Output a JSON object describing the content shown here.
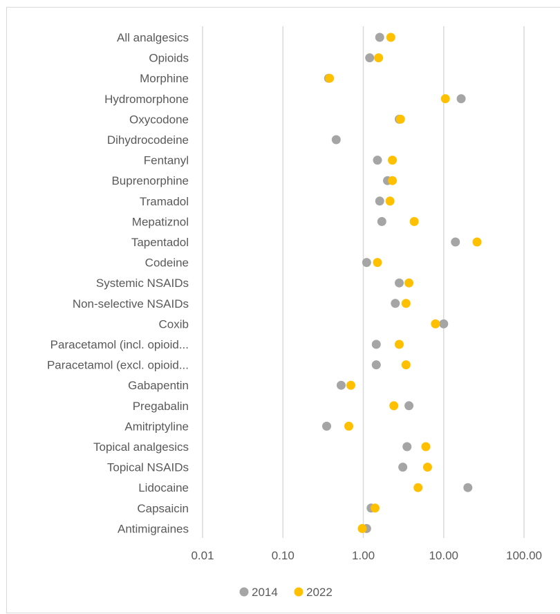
{
  "chart_data": {
    "type": "scatter",
    "x_scale": "log",
    "xlim": [
      0.01,
      100
    ],
    "x_ticks": [
      0.01,
      0.1,
      1,
      10,
      100
    ],
    "x_tick_labels": [
      "0.01",
      "0.10",
      "1.00",
      "10.00",
      "100.00"
    ],
    "grid": "vertical",
    "legend_position": "bottom",
    "categories": [
      "All analgesics",
      "Opioids",
      "Morphine",
      "Hydromorphone",
      "Oxycodone",
      "Dihydrocodeine",
      "Fentanyl",
      "Buprenorphine",
      "Tramadol",
      "Mepatiznol",
      "Tapentadol",
      "Codeine",
      "Systemic NSAIDs",
      "Non-selective NSAIDs",
      "Coxib",
      "Paracetamol (incl. opioid...",
      "Paracetamol (excl. opioid...",
      "Gabapentin",
      "Pregabalin",
      "Amitriptyline",
      "Topical analgesics",
      "Topical NSAIDs",
      "Lidocaine",
      "Capsaicin",
      "Antimigraines"
    ],
    "series": [
      {
        "name": "2014",
        "color": "#a5a5a5",
        "values": [
          1.6,
          1.2,
          0.37,
          16.5,
          2.8,
          0.46,
          1.5,
          2.0,
          1.6,
          1.7,
          14.0,
          1.1,
          2.8,
          2.5,
          10.0,
          1.45,
          1.45,
          0.53,
          3.7,
          0.35,
          3.5,
          3.1,
          20.0,
          1.25,
          1.1
        ]
      },
      {
        "name": "2022",
        "color": "#ffc000",
        "values": [
          2.2,
          1.55,
          0.38,
          10.5,
          2.9,
          null,
          2.3,
          2.3,
          2.15,
          4.3,
          26.0,
          1.5,
          3.7,
          3.4,
          7.9,
          2.8,
          3.4,
          0.7,
          2.4,
          0.66,
          6.0,
          6.3,
          4.8,
          1.4,
          0.97
        ]
      }
    ]
  }
}
